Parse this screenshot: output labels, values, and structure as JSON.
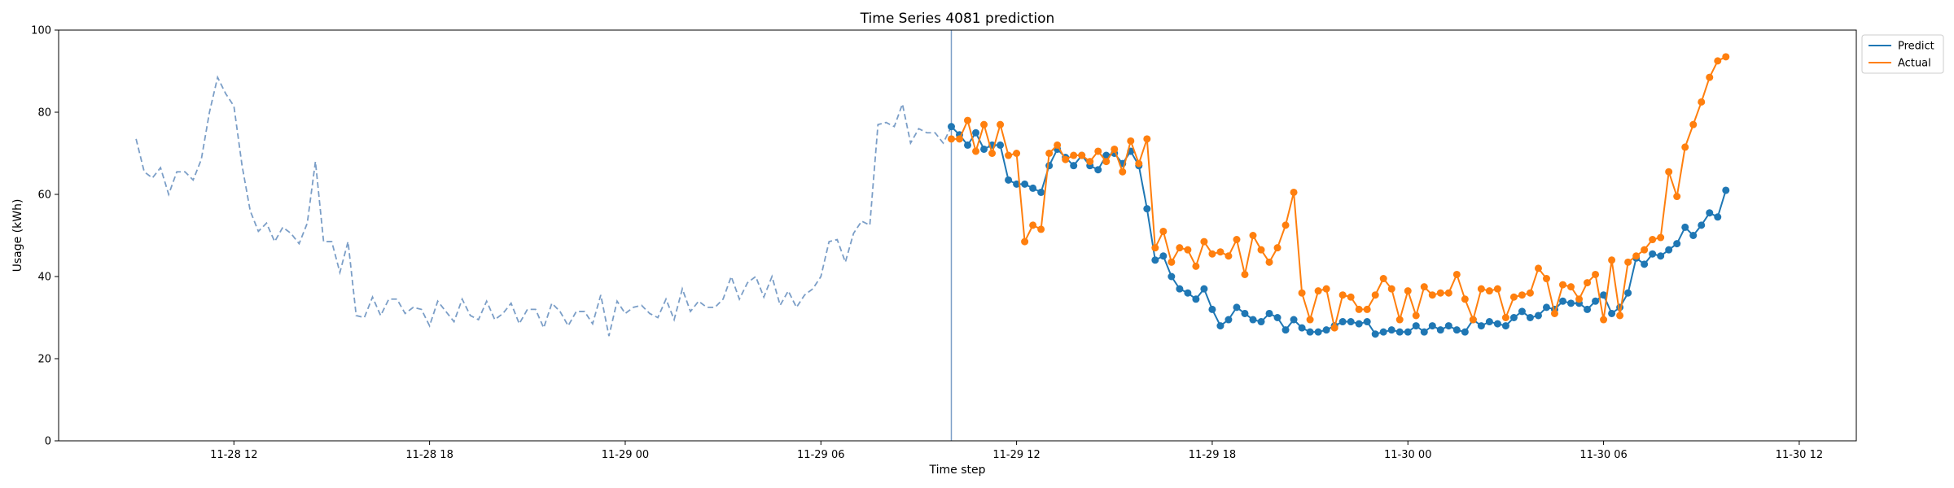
{
  "chart_data": {
    "type": "line",
    "title": "Time Series 4081 prediction",
    "xlabel": "Time step",
    "ylabel": "Usage (kWh)",
    "ylim": [
      0,
      100
    ],
    "xlim": [
      -9.5,
      211
    ],
    "y_ticks": [
      0,
      20,
      40,
      60,
      80,
      100
    ],
    "x_ticks": [
      {
        "label": "11-28 12",
        "t": 12
      },
      {
        "label": "11-28 18",
        "t": 36
      },
      {
        "label": "11-29 00",
        "t": 60
      },
      {
        "label": "11-29 06",
        "t": 84
      },
      {
        "label": "11-29 12",
        "t": 108
      },
      {
        "label": "11-29 18",
        "t": 132
      },
      {
        "label": "11-30 00",
        "t": 156
      },
      {
        "label": "11-30 06",
        "t": 180
      },
      {
        "label": "11-30 12",
        "t": 204
      }
    ],
    "forecast_start": 100,
    "legend_position": "top-right",
    "history": {
      "start": 0,
      "color": "#7b9ec7",
      "values": [
        73.5,
        65.5,
        64,
        66.5,
        60,
        65.5,
        65.5,
        63.5,
        68.5,
        80,
        88.5,
        84.5,
        81.5,
        67,
        56,
        51,
        53,
        48.5,
        52,
        50.5,
        48,
        53,
        68,
        48.5,
        48.5,
        41,
        48.5,
        30.5,
        30,
        35,
        30.5,
        34.5,
        34.5,
        31,
        32.5,
        32,
        28,
        34,
        31.5,
        29,
        34.5,
        30.5,
        29.5,
        34,
        29.5,
        31,
        33.5,
        28.5,
        32,
        32,
        27.5,
        33.5,
        31.5,
        28,
        31.5,
        31.5,
        28.5,
        35.5,
        25.5,
        34,
        31,
        32.5,
        33,
        31,
        30,
        34.5,
        29.5,
        37,
        31.5,
        34,
        32.5,
        32.5,
        34.5,
        40,
        34.5,
        38.5,
        40,
        35,
        40,
        33,
        36.5,
        32.5,
        35.5,
        37,
        40,
        48.5,
        49,
        43.5,
        50.5,
        53.5,
        52.5,
        77,
        77.5,
        76.5,
        82,
        72.5,
        76,
        75,
        75,
        72.5,
        76.5
      ]
    },
    "series": [
      {
        "name": "Predict",
        "color": "#1f77b4",
        "start": 100,
        "values": [
          76.5,
          74.5,
          72,
          75,
          71,
          72,
          72,
          63.5,
          62.5,
          62.5,
          61.5,
          60.5,
          67,
          71,
          69,
          67,
          69.5,
          67,
          66,
          69.5,
          70,
          67.5,
          70.5,
          67,
          56.5,
          44,
          45,
          40,
          37,
          36,
          34.5,
          37,
          32,
          28,
          29.5,
          32.5,
          31,
          29.5,
          29,
          31,
          30,
          27,
          29.5,
          27.5,
          26.5,
          26.5,
          27,
          28,
          29,
          29,
          28.5,
          29,
          26,
          26.5,
          27,
          26.5,
          26.5,
          28,
          26.5,
          28,
          27,
          28,
          27,
          26.5,
          29.5,
          28,
          29,
          28.5,
          28,
          30,
          31.5,
          30,
          30.5,
          32.5,
          32,
          34,
          33.5,
          33.5,
          32,
          34,
          35.5,
          31,
          32.5,
          36,
          44.5,
          43,
          45.5,
          45,
          46.5,
          48,
          52,
          50,
          52.5,
          55.5,
          54.5,
          61
        ]
      },
      {
        "name": "Actual",
        "color": "#ff7f0e",
        "start": 100,
        "values": [
          73.5,
          73.5,
          78,
          70.5,
          77,
          70,
          77,
          69.5,
          70,
          48.5,
          52.5,
          51.5,
          70,
          72,
          68.5,
          69.5,
          69.5,
          68,
          70.5,
          68,
          71,
          65.5,
          73,
          67.5,
          73.5,
          47,
          51,
          43.5,
          47,
          46.5,
          42.5,
          48.5,
          45.5,
          46,
          45,
          49,
          40.5,
          50,
          46.5,
          43.5,
          47,
          52.5,
          60.5,
          36,
          29.5,
          36.5,
          37,
          27.5,
          35.5,
          35,
          32,
          32,
          35.5,
          39.5,
          37,
          29.5,
          36.5,
          30.5,
          37.5,
          35.5,
          36,
          36,
          40.5,
          34.5,
          29.5,
          37,
          36.5,
          37,
          30,
          35,
          35.5,
          36,
          42,
          39.5,
          31,
          38,
          37.5,
          34.5,
          38.5,
          40.5,
          29.5,
          44,
          30.5,
          43.5,
          45,
          46.5,
          49,
          49.5,
          65.5,
          59.5,
          71.5,
          77,
          82.5,
          88.5,
          92.5,
          93.5
        ]
      }
    ]
  }
}
